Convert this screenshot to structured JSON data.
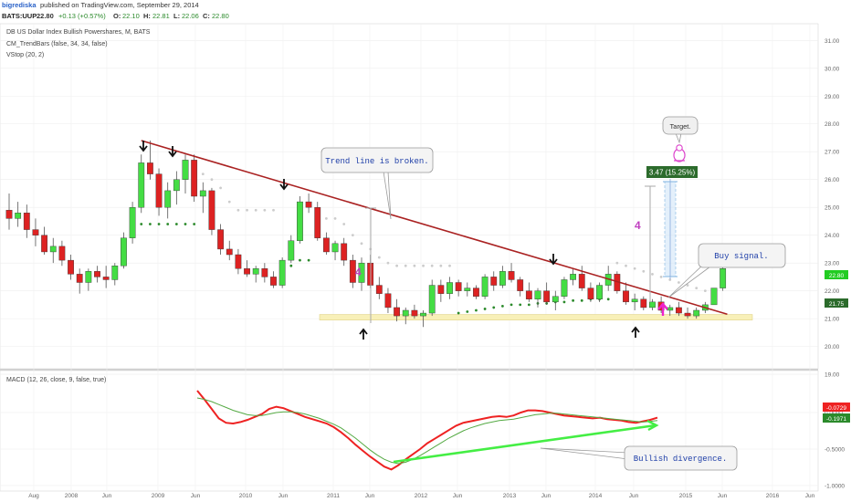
{
  "header": {
    "author": "bigrediska",
    "published": "published on TradingView.com, September 29, 2014",
    "ticker": "BATS:UUP",
    "last": "22.80",
    "change": "+0.13 (+0.57%)",
    "o_label": "O:",
    "o_val": "22.10",
    "h_label": "H:",
    "h_val": "22.81",
    "l_label": "L:",
    "l_val": "22.06",
    "c_label": "C:",
    "c_val": "22.80"
  },
  "legend": {
    "title": "DB US Dollar Index Bullish Powershares, M, BATS",
    "ind1": "CM_TrendBars (false, 34, 34, false)",
    "ind2": "VStop (20, 2)",
    "macd": "MACD (12, 26, close, 9, false, true)"
  },
  "annotations": {
    "trend_broken": "Trend line is broken.",
    "buy_signal": "Buy signal.",
    "target": "Target.",
    "bullish_div": "Bullish divergence.",
    "measure": "3.47 (15.25%)",
    "four_a": "4",
    "four_b": "4"
  },
  "price_tags": {
    "last": "22.80",
    "vstop": "21.75",
    "macd1": "-0.0729",
    "macd2": "-0.1971"
  },
  "colors": {
    "up": "#44dd44",
    "down": "#dd2222",
    "trend": "#aa2222",
    "macd": "#ee2222",
    "signal": "#55aa44",
    "divergence": "#44ee44",
    "stop_up": "#2b8a2b",
    "stop_down": "#cccccc",
    "support": "#f8f0b8",
    "text_blue": "#1f3fa8",
    "accent": "#c040c0"
  },
  "chart_data": [
    {
      "type": "candlestick",
      "title": "DB US Dollar Index Bullish Powershares, M, BATS",
      "ylim": [
        19.2,
        31.6
      ],
      "y_ticks": [
        "31.00",
        "30.00",
        "29.00",
        "28.00",
        "27.00",
        "26.00",
        "25.00",
        "24.00",
        "23.00",
        "22.00",
        "21.00",
        "20.00",
        "19.00"
      ],
      "x_labels": [
        "Aug",
        "2008",
        "Jun",
        "2009",
        "Jun",
        "2010",
        "Jun",
        "2011",
        "Jun",
        "2012",
        "Jun",
        "2013",
        "Jun",
        "2014",
        "Jun",
        "2015",
        "Jun",
        "2016",
        "Jun"
      ],
      "ohlc": [
        [
          24.9,
          25.5,
          24.2,
          24.6
        ],
        [
          24.6,
          25.2,
          24.3,
          24.8
        ],
        [
          24.8,
          25.1,
          23.9,
          24.2
        ],
        [
          24.2,
          24.6,
          23.6,
          24.0
        ],
        [
          24.0,
          24.3,
          23.3,
          23.4
        ],
        [
          23.4,
          23.9,
          23.0,
          23.6
        ],
        [
          23.6,
          23.8,
          22.9,
          23.1
        ],
        [
          23.1,
          23.3,
          22.4,
          22.6
        ],
        [
          22.6,
          22.8,
          21.9,
          22.3
        ],
        [
          22.3,
          22.8,
          22.0,
          22.7
        ],
        [
          22.7,
          22.9,
          22.3,
          22.5
        ],
        [
          22.5,
          22.9,
          22.1,
          22.4
        ],
        [
          22.4,
          23.0,
          22.2,
          22.9
        ],
        [
          22.9,
          24.1,
          22.8,
          23.9
        ],
        [
          23.9,
          25.2,
          23.7,
          25.0
        ],
        [
          25.0,
          26.9,
          24.8,
          26.6
        ],
        [
          26.6,
          27.4,
          26.0,
          26.2
        ],
        [
          26.2,
          26.4,
          24.7,
          25.0
        ],
        [
          25.0,
          25.9,
          24.6,
          25.6
        ],
        [
          25.6,
          26.3,
          25.1,
          26.0
        ],
        [
          26.0,
          26.9,
          25.5,
          26.7
        ],
        [
          26.7,
          26.9,
          25.2,
          25.4
        ],
        [
          25.4,
          25.9,
          24.8,
          25.6
        ],
        [
          25.6,
          25.7,
          24.0,
          24.2
        ],
        [
          24.2,
          24.4,
          23.3,
          23.5
        ],
        [
          23.5,
          23.8,
          23.1,
          23.3
        ],
        [
          23.3,
          23.5,
          22.6,
          22.8
        ],
        [
          22.8,
          23.1,
          22.5,
          22.6
        ],
        [
          22.6,
          22.9,
          22.3,
          22.8
        ],
        [
          22.8,
          23.0,
          22.3,
          22.5
        ],
        [
          22.5,
          22.7,
          22.1,
          22.2
        ],
        [
          22.2,
          23.2,
          22.1,
          23.1
        ],
        [
          23.1,
          24.0,
          23.0,
          23.8
        ],
        [
          23.8,
          25.4,
          23.7,
          25.2
        ],
        [
          25.2,
          25.5,
          24.8,
          25.0
        ],
        [
          25.0,
          25.2,
          23.8,
          23.9
        ],
        [
          23.9,
          24.1,
          23.3,
          23.4
        ],
        [
          23.4,
          23.8,
          23.1,
          23.7
        ],
        [
          23.7,
          23.9,
          22.9,
          23.1
        ],
        [
          23.1,
          23.3,
          22.1,
          22.3
        ],
        [
          22.3,
          23.2,
          22.0,
          23.0
        ],
        [
          23.0,
          23.3,
          22.1,
          22.2
        ],
        [
          22.2,
          22.5,
          21.7,
          21.9
        ],
        [
          21.9,
          22.1,
          21.2,
          21.4
        ],
        [
          21.4,
          21.7,
          20.9,
          21.1
        ],
        [
          21.1,
          21.4,
          20.8,
          21.3
        ],
        [
          21.3,
          21.5,
          21.0,
          21.1
        ],
        [
          21.1,
          21.3,
          20.7,
          21.2
        ],
        [
          21.2,
          22.4,
          21.1,
          22.2
        ],
        [
          22.2,
          22.4,
          21.6,
          21.9
        ],
        [
          21.9,
          22.5,
          21.7,
          22.3
        ],
        [
          22.3,
          22.4,
          21.8,
          22.0
        ],
        [
          22.0,
          22.3,
          21.8,
          22.1
        ],
        [
          22.1,
          22.2,
          21.7,
          21.8
        ],
        [
          21.8,
          22.6,
          21.7,
          22.5
        ],
        [
          22.5,
          22.7,
          22.0,
          22.2
        ],
        [
          22.2,
          22.9,
          22.1,
          22.7
        ],
        [
          22.7,
          23.0,
          22.3,
          22.4
        ],
        [
          22.4,
          22.5,
          21.8,
          22.0
        ],
        [
          22.0,
          22.3,
          21.6,
          21.7
        ],
        [
          21.7,
          22.1,
          21.4,
          22.0
        ],
        [
          22.0,
          22.3,
          21.5,
          21.6
        ],
        [
          21.6,
          22.0,
          21.3,
          21.8
        ],
        [
          21.8,
          22.5,
          21.7,
          22.4
        ],
        [
          22.4,
          22.8,
          22.2,
          22.6
        ],
        [
          22.6,
          22.9,
          22.0,
          22.1
        ],
        [
          22.1,
          22.3,
          21.6,
          21.7
        ],
        [
          21.7,
          22.3,
          21.6,
          22.2
        ],
        [
          22.2,
          22.9,
          22.0,
          22.6
        ],
        [
          22.6,
          22.7,
          21.9,
          22.0
        ],
        [
          22.0,
          22.3,
          21.5,
          21.6
        ],
        [
          21.6,
          21.9,
          21.3,
          21.7
        ],
        [
          21.7,
          21.8,
          21.3,
          21.4
        ],
        [
          21.4,
          21.7,
          21.3,
          21.6
        ],
        [
          21.6,
          21.8,
          21.2,
          21.3
        ],
        [
          21.3,
          21.5,
          21.1,
          21.4
        ],
        [
          21.4,
          21.6,
          21.1,
          21.2
        ],
        [
          21.2,
          21.4,
          21.0,
          21.1
        ],
        [
          21.1,
          21.4,
          21.0,
          21.3
        ],
        [
          21.3,
          21.6,
          21.2,
          21.5
        ],
        [
          21.5,
          22.1,
          21.5,
          22.1
        ],
        [
          22.1,
          22.9,
          22.0,
          22.8
        ]
      ],
      "trend_line": [
        [
          27.4,
          15
        ],
        [
          21.3,
          80
        ]
      ],
      "support_zone": [
        20.95,
        21.15
      ],
      "measure_range": [
        22.8,
        26.2
      ]
    },
    {
      "type": "line",
      "title": "MACD (12, 26, close, 9, false, true)",
      "ylim": [
        -1.05,
        0.55
      ],
      "y_ticks": [
        "0.0000",
        "-0.5000",
        "-1.0000"
      ],
      "series": [
        {
          "name": "MACD",
          "values": [
            0.3,
            0.18,
            0.05,
            -0.08,
            -0.14,
            -0.15,
            -0.13,
            -0.1,
            -0.06,
            -0.02,
            0.05,
            0.08,
            0.06,
            0.02,
            -0.02,
            -0.06,
            -0.09,
            -0.12,
            -0.15,
            -0.2,
            -0.27,
            -0.35,
            -0.44,
            -0.52,
            -0.6,
            -0.67,
            -0.74,
            -0.78,
            -0.72,
            -0.64,
            -0.57,
            -0.5,
            -0.42,
            -0.36,
            -0.3,
            -0.24,
            -0.18,
            -0.14,
            -0.12,
            -0.1,
            -0.08,
            -0.06,
            -0.05,
            -0.06,
            -0.04,
            0.0,
            0.03,
            0.03,
            0.02,
            0.0,
            -0.02,
            -0.04,
            -0.05,
            -0.06,
            -0.07,
            -0.08,
            -0.07,
            -0.09,
            -0.1,
            -0.11,
            -0.13,
            -0.14,
            -0.12,
            -0.1,
            -0.07
          ]
        },
        {
          "name": "Signal",
          "values": [
            0.2,
            0.18,
            0.15,
            0.11,
            0.07,
            0.03,
            0.0,
            -0.03,
            -0.04,
            -0.04,
            -0.02,
            0.0,
            0.01,
            0.01,
            0.0,
            -0.02,
            -0.05,
            -0.08,
            -0.12,
            -0.16,
            -0.21,
            -0.28,
            -0.35,
            -0.43,
            -0.51,
            -0.58,
            -0.64,
            -0.68,
            -0.7,
            -0.68,
            -0.64,
            -0.59,
            -0.53,
            -0.47,
            -0.41,
            -0.35,
            -0.3,
            -0.25,
            -0.21,
            -0.18,
            -0.15,
            -0.13,
            -0.11,
            -0.1,
            -0.09,
            -0.07,
            -0.05,
            -0.03,
            -0.02,
            -0.01,
            -0.01,
            -0.02,
            -0.03,
            -0.04,
            -0.05,
            -0.06,
            -0.07,
            -0.08,
            -0.09,
            -0.1,
            -0.11,
            -0.12,
            -0.13,
            -0.12,
            -0.11
          ]
        }
      ]
    }
  ]
}
